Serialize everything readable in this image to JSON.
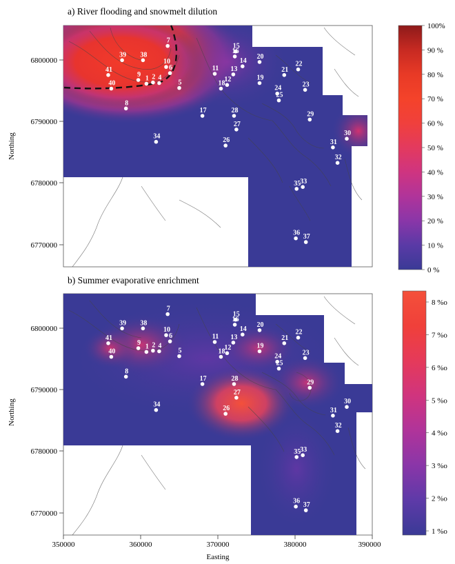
{
  "panels": [
    {
      "title": "a) River flooding and snowmelt dilution",
      "colorbar": {
        "labels": [
          "100%",
          "90 %",
          "80 %",
          "70 %",
          "60 %",
          "50 %",
          "40 %",
          "30 %",
          "20 %",
          "10 %",
          "0  %"
        ],
        "stops": [
          "#3a3a96",
          "#5a3aa6",
          "#8a36a8",
          "#b0349a",
          "#cf3480",
          "#e33a5e",
          "#f0403c",
          "#f4432a",
          "#e83a26",
          "#c72a22",
          "#8e1a1a"
        ]
      },
      "yticks": [
        "6800000",
        "6790000",
        "6780000",
        "6770000"
      ],
      "ylabel": "Northing",
      "show_xaxis": false
    },
    {
      "title": "b) Summer evaporative enrichment",
      "colorbar": {
        "labels": [
          "8 %o",
          "7 %o",
          "6 %o",
          "5 %o",
          "4 %o",
          "3 %o",
          "2 %o",
          "1 %o"
        ],
        "stops": [
          "#3a3a96",
          "#5e3aa8",
          "#8a36a8",
          "#b0349a",
          "#d0347e",
          "#e53a5a",
          "#f0403a",
          "#f4503a"
        ]
      },
      "yticks": [
        "6800000",
        "6790000",
        "6780000",
        "6770000"
      ],
      "ylabel": "Northing",
      "show_xaxis": true
    }
  ],
  "xticks": [
    "350000",
    "360000",
    "370000",
    "380000",
    "390000"
  ],
  "xlabel": "Easting",
  "sites": [
    {
      "id": "1",
      "e": 360750,
      "n": 6796600
    },
    {
      "id": "2",
      "e": 361600,
      "n": 6796800
    },
    {
      "id": "4",
      "e": 362400,
      "n": 6796700
    },
    {
      "id": "5",
      "e": 365000,
      "n": 6795900
    },
    {
      "id": "6",
      "e": 363800,
      "n": 6798300
    },
    {
      "id": "7",
      "e": 363500,
      "n": 6802700
    },
    {
      "id": "8",
      "e": 358100,
      "n": 6792600
    },
    {
      "id": "9",
      "e": 359700,
      "n": 6797200
    },
    {
      "id": "10",
      "e": 363300,
      "n": 6799300
    },
    {
      "id": "11",
      "e": 369600,
      "n": 6798200
    },
    {
      "id": "12",
      "e": 371200,
      "n": 6796400
    },
    {
      "id": "13",
      "e": 372000,
      "n": 6798100
    },
    {
      "id": "14",
      "e": 373200,
      "n": 6799400
    },
    {
      "id": "15",
      "e": 372300,
      "n": 6801800
    },
    {
      "id": "16",
      "e": 372200,
      "n": 6801000
    },
    {
      "id": "17",
      "e": 368000,
      "n": 6791400
    },
    {
      "id": "18",
      "e": 370400,
      "n": 6795800
    },
    {
      "id": "19",
      "e": 375400,
      "n": 6796700
    },
    {
      "id": "20",
      "e": 375400,
      "n": 6800100
    },
    {
      "id": "21",
      "e": 378600,
      "n": 6798000
    },
    {
      "id": "22",
      "e": 380400,
      "n": 6798900
    },
    {
      "id": "23",
      "e": 381300,
      "n": 6795600
    },
    {
      "id": "24",
      "e": 377700,
      "n": 6795000
    },
    {
      "id": "25",
      "e": 377900,
      "n": 6793900
    },
    {
      "id": "26",
      "e": 371000,
      "n": 6786600
    },
    {
      "id": "27",
      "e": 372400,
      "n": 6789200
    },
    {
      "id": "28",
      "e": 372100,
      "n": 6791400
    },
    {
      "id": "29",
      "e": 381900,
      "n": 6790800
    },
    {
      "id": "30",
      "e": 386700,
      "n": 6787700
    },
    {
      "id": "31",
      "e": 384900,
      "n": 6786300
    },
    {
      "id": "32",
      "e": 385500,
      "n": 6783800
    },
    {
      "id": "33",
      "e": 381000,
      "n": 6779900
    },
    {
      "id": "35",
      "e": 380200,
      "n": 6779600
    },
    {
      "id": "34",
      "e": 362000,
      "n": 6787200
    },
    {
      "id": "36",
      "e": 380100,
      "n": 6771600
    },
    {
      "id": "37",
      "e": 381400,
      "n": 6771000
    },
    {
      "id": "38",
      "e": 360300,
      "n": 6800400
    },
    {
      "id": "39",
      "e": 357600,
      "n": 6800400
    },
    {
      "id": "40",
      "e": 356200,
      "n": 6795800
    },
    {
      "id": "41",
      "e": 355800,
      "n": 6798000
    }
  ],
  "extent": {
    "emin": 350000,
    "emax": 390000,
    "nmin": 6767000,
    "nmax": 6806000
  }
}
